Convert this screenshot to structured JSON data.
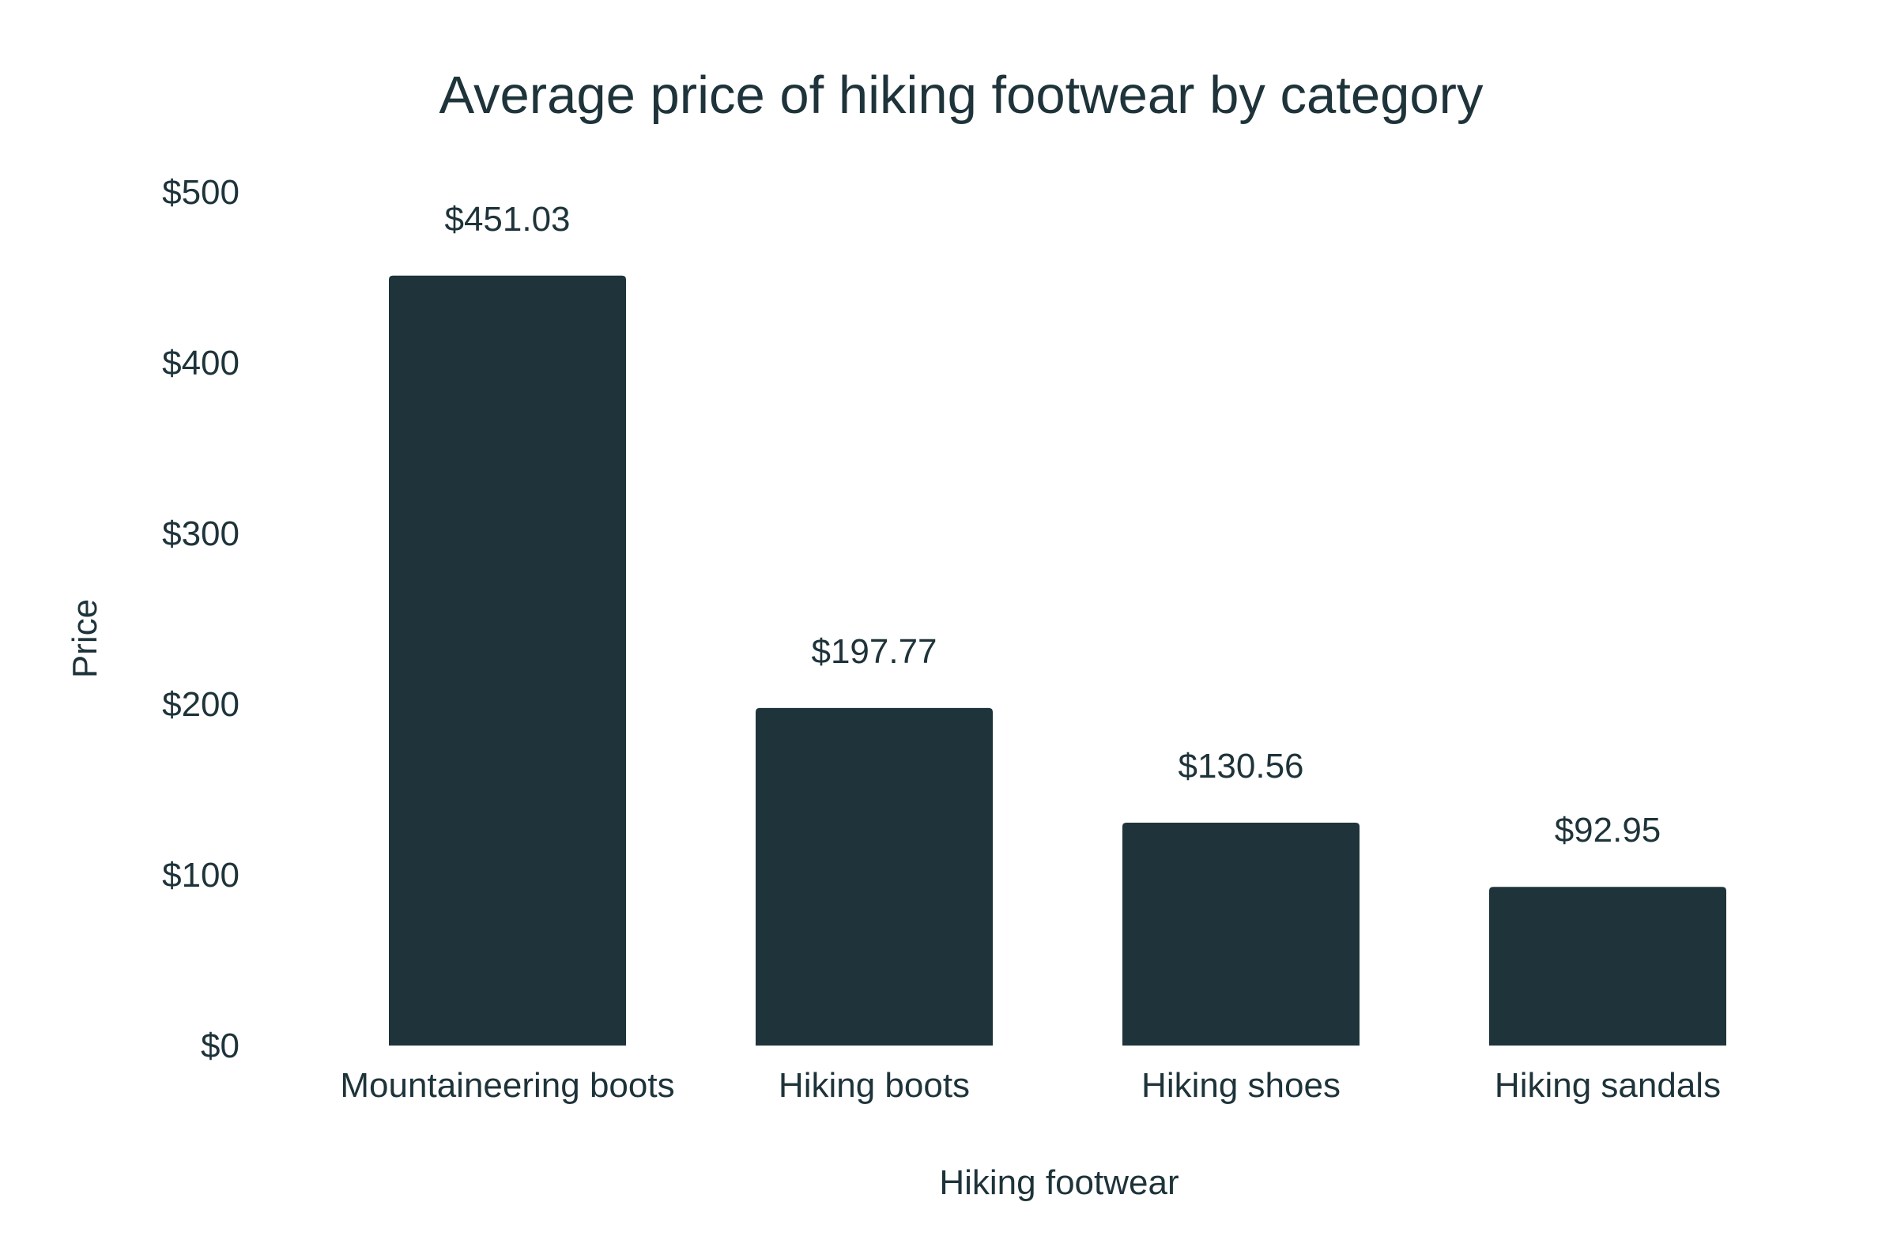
{
  "chart_data": {
    "type": "bar",
    "title": "Average price of hiking footwear by category",
    "xlabel": "Hiking footwear",
    "ylabel": "Price",
    "categories": [
      "Mountaineering boots",
      "Hiking boots",
      "Hiking shoes",
      "Hiking sandals"
    ],
    "values": [
      451.03,
      197.77,
      130.56,
      92.95
    ],
    "data_labels": [
      "$451.03",
      "$197.77",
      "$130.56",
      "$92.95"
    ],
    "ylim": [
      0,
      500
    ],
    "yticks": [
      0,
      100,
      200,
      300,
      400,
      500
    ],
    "ytick_labels": [
      "$0",
      "$100",
      "$200",
      "$300",
      "$400",
      "$500"
    ],
    "grid": false,
    "legend": "none",
    "bar_color": "#1e333a"
  }
}
